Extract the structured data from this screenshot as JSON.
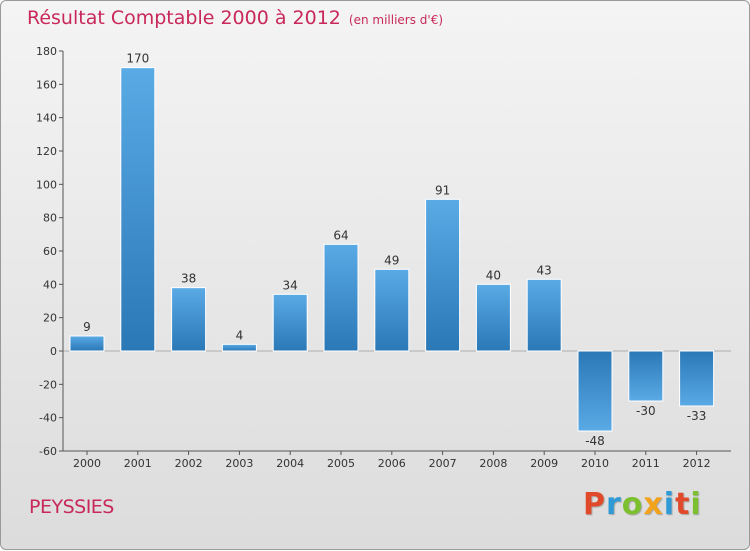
{
  "header": {
    "title": "Résultat Comptable 2000 à 2012",
    "subtitle": "(en milliers d'€)"
  },
  "footer": {
    "commune": "PEYSSIES",
    "logo": [
      "P",
      "r",
      "o",
      "x",
      "i",
      "t",
      "i"
    ],
    "logo_colors": [
      "#e0492a",
      "#2f9bd6",
      "#7cbf2f",
      "#f2a31b",
      "#2f9bd6",
      "#e0492a",
      "#7cbf2f"
    ]
  },
  "chart_data": {
    "type": "bar",
    "title": "Résultat Comptable 2000 à 2012",
    "ylabel": "en milliers d'€",
    "xlabel": "",
    "categories": [
      "2000",
      "2001",
      "2002",
      "2003",
      "2004",
      "2005",
      "2006",
      "2007",
      "2008",
      "2009",
      "2010",
      "2011",
      "2012"
    ],
    "values": [
      9,
      170,
      38,
      4,
      34,
      64,
      49,
      91,
      40,
      43,
      -48,
      -30,
      -33
    ],
    "ylim": [
      -60,
      180
    ],
    "yticks": [
      -60,
      -40,
      -20,
      0,
      20,
      40,
      60,
      80,
      100,
      120,
      140,
      160,
      180
    ],
    "grid": false,
    "bar_color_light": "#5aaae6",
    "bar_color_dark": "#2a78b6"
  }
}
